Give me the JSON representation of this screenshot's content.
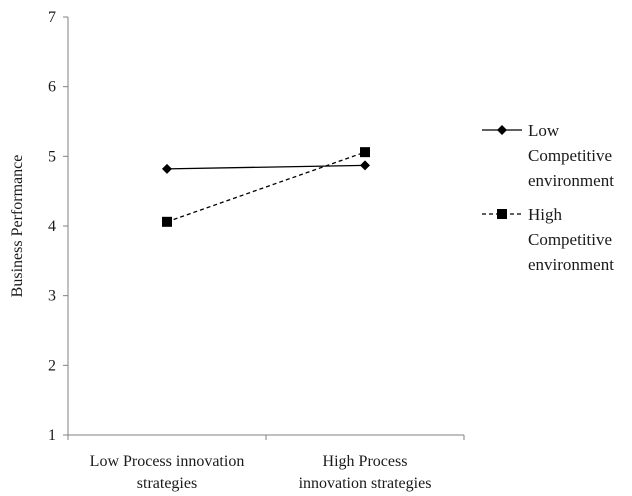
{
  "chart_data": {
    "type": "line",
    "categories": [
      [
        "Low Process innovation",
        "strategies"
      ],
      [
        "High Process",
        "innovation strategies"
      ]
    ],
    "ylabel": "Business Performance",
    "xlabel": "",
    "ylim": [
      1,
      7
    ],
    "yticks": [
      "1",
      "2",
      "3",
      "4",
      "5",
      "6",
      "7"
    ],
    "grid": false,
    "legend_position": "right",
    "series": [
      {
        "name": [
          "Low",
          "Competitive",
          "environment"
        ],
        "values": [
          4.82,
          4.87
        ],
        "line_style": "solid",
        "marker": "diamond",
        "color": "#000000"
      },
      {
        "name": [
          "High",
          "Competitive",
          "environment"
        ],
        "values": [
          4.06,
          5.06
        ],
        "line_style": "dashed",
        "marker": "square",
        "color": "#000000"
      }
    ]
  }
}
